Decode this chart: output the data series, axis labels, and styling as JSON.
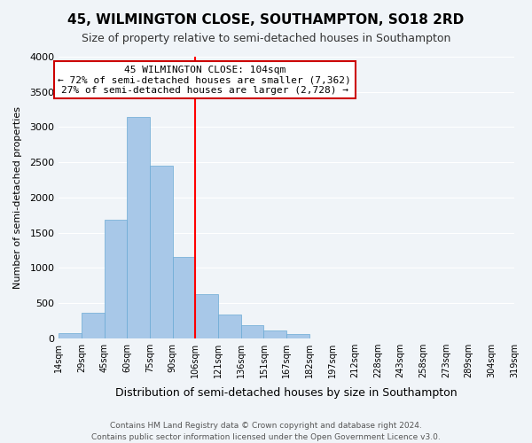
{
  "title": "45, WILMINGTON CLOSE, SOUTHAMPTON, SO18 2RD",
  "subtitle": "Size of property relative to semi-detached houses in Southampton",
  "xlabel": "Distribution of semi-detached houses by size in Southampton",
  "ylabel": "Number of semi-detached properties",
  "footer_line1": "Contains HM Land Registry data © Crown copyright and database right 2024.",
  "footer_line2": "Contains public sector information licensed under the Open Government Licence v3.0.",
  "bin_labels": [
    "14sqm",
    "29sqm",
    "45sqm",
    "60sqm",
    "75sqm",
    "90sqm",
    "106sqm",
    "121sqm",
    "136sqm",
    "151sqm",
    "167sqm",
    "182sqm",
    "197sqm",
    "212sqm",
    "228sqm",
    "243sqm",
    "258sqm",
    "273sqm",
    "289sqm",
    "304sqm",
    "319sqm"
  ],
  "bar_heights": [
    70,
    360,
    1680,
    3150,
    2450,
    1160,
    630,
    330,
    185,
    110,
    55,
    0,
    0,
    0,
    0,
    0,
    0,
    0,
    0,
    0
  ],
  "bar_color": "#a8c8e8",
  "bar_edge_color": "#6aaad4",
  "property_line_x": 6,
  "property_line_color": "red",
  "ylim": [
    0,
    4000
  ],
  "yticks": [
    0,
    500,
    1000,
    1500,
    2000,
    2500,
    3000,
    3500,
    4000
  ],
  "annotation_title": "45 WILMINGTON CLOSE: 104sqm",
  "annotation_line1": "← 72% of semi-detached houses are smaller (7,362)",
  "annotation_line2": "27% of semi-detached houses are larger (2,728) →",
  "annotation_box_color": "#ffffff",
  "annotation_box_edge": "#cc0000",
  "background_color": "#f0f4f8"
}
